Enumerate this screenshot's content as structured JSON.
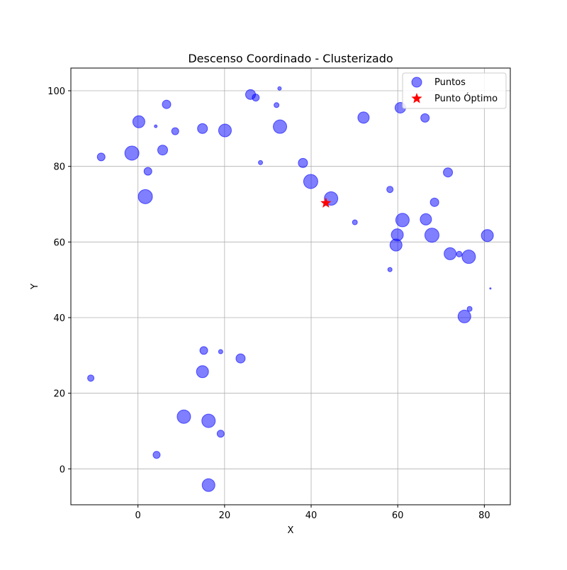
{
  "chart_data": {
    "type": "scatter",
    "title": "Descenso Coordinado - Clusterizado",
    "xlabel": "X",
    "ylabel": "Y",
    "xlim": [
      -15.5,
      86
    ],
    "ylim": [
      -9.5,
      106
    ],
    "x_ticks": [
      0,
      20,
      40,
      60,
      80
    ],
    "y_ticks": [
      0,
      20,
      40,
      60,
      80,
      100
    ],
    "grid": true,
    "legend_position": "upper right",
    "colors": {
      "points": "#0000ff",
      "optimum": "#ff0000",
      "grid": "#b0b0b0"
    },
    "series": [
      {
        "name": "Puntos",
        "marker": "circle",
        "points": [
          {
            "x": 26,
            "y": 99,
            "s": 7
          },
          {
            "x": 27.2,
            "y": 98.2,
            "s": 5
          },
          {
            "x": 32.7,
            "y": 100.6,
            "s": 2.5
          },
          {
            "x": 32,
            "y": 96.2,
            "s": 3.5
          },
          {
            "x": 6.6,
            "y": 96.4,
            "s": 6
          },
          {
            "x": 0.2,
            "y": 91.8,
            "s": 8.5
          },
          {
            "x": 4.1,
            "y": 90.6,
            "s": 2
          },
          {
            "x": 8.6,
            "y": 89.3,
            "s": 5
          },
          {
            "x": 14.9,
            "y": 90,
            "s": 7
          },
          {
            "x": 20.1,
            "y": 89.5,
            "s": 9
          },
          {
            "x": 32.8,
            "y": 90.5,
            "s": 9.5
          },
          {
            "x": 52.1,
            "y": 92.9,
            "s": 8
          },
          {
            "x": 60.6,
            "y": 95.5,
            "s": 7.5
          },
          {
            "x": 66.3,
            "y": 92.8,
            "s": 6
          },
          {
            "x": -8.5,
            "y": 82.5,
            "s": 5.5
          },
          {
            "x": -1.4,
            "y": 83.5,
            "s": 10
          },
          {
            "x": 5.7,
            "y": 84.3,
            "s": 7
          },
          {
            "x": 2.3,
            "y": 78.7,
            "s": 5.5
          },
          {
            "x": 1.7,
            "y": 72,
            "s": 10
          },
          {
            "x": 28.3,
            "y": 81,
            "s": 3
          },
          {
            "x": 38.1,
            "y": 80.9,
            "s": 6.5
          },
          {
            "x": 39.9,
            "y": 76,
            "s": 10
          },
          {
            "x": 44.6,
            "y": 71.5,
            "s": 9.5
          },
          {
            "x": 58.2,
            "y": 73.9,
            "s": 4.5
          },
          {
            "x": 71.6,
            "y": 78.4,
            "s": 6.5
          },
          {
            "x": 68.5,
            "y": 70.5,
            "s": 6
          },
          {
            "x": 50.1,
            "y": 65.2,
            "s": 3.5
          },
          {
            "x": 61.1,
            "y": 65.8,
            "s": 9.5
          },
          {
            "x": 66.5,
            "y": 66,
            "s": 8
          },
          {
            "x": 59.9,
            "y": 61.9,
            "s": 8.5
          },
          {
            "x": 67.9,
            "y": 61.8,
            "s": 10
          },
          {
            "x": 80.7,
            "y": 61.7,
            "s": 8.5
          },
          {
            "x": 59.6,
            "y": 59.2,
            "s": 8.5
          },
          {
            "x": 72.1,
            "y": 56.9,
            "s": 8.5
          },
          {
            "x": 74.2,
            "y": 56.8,
            "s": 4
          },
          {
            "x": 76.4,
            "y": 56.1,
            "s": 9.5
          },
          {
            "x": 58.2,
            "y": 52.7,
            "s": 3
          },
          {
            "x": 81.4,
            "y": 47.7,
            "s": 1
          },
          {
            "x": 76.6,
            "y": 42.3,
            "s": 3.5
          },
          {
            "x": 75.4,
            "y": 40.3,
            "s": 9
          },
          {
            "x": 15.2,
            "y": 31.3,
            "s": 5.5
          },
          {
            "x": 19.1,
            "y": 31,
            "s": 3
          },
          {
            "x": 23.7,
            "y": 29.2,
            "s": 6.5
          },
          {
            "x": 14.9,
            "y": 25.7,
            "s": 8.5
          },
          {
            "x": -10.9,
            "y": 24,
            "s": 4.5
          },
          {
            "x": 10.6,
            "y": 13.8,
            "s": 9.5
          },
          {
            "x": 16.3,
            "y": 12.7,
            "s": 9.5
          },
          {
            "x": 19.1,
            "y": 9.3,
            "s": 5
          },
          {
            "x": 4.3,
            "y": 3.7,
            "s": 5
          },
          {
            "x": 16.3,
            "y": -4.3,
            "s": 9
          }
        ]
      },
      {
        "name": "Punto Óptimo",
        "marker": "star",
        "points": [
          {
            "x": 43.4,
            "y": 70.3
          }
        ]
      }
    ]
  }
}
